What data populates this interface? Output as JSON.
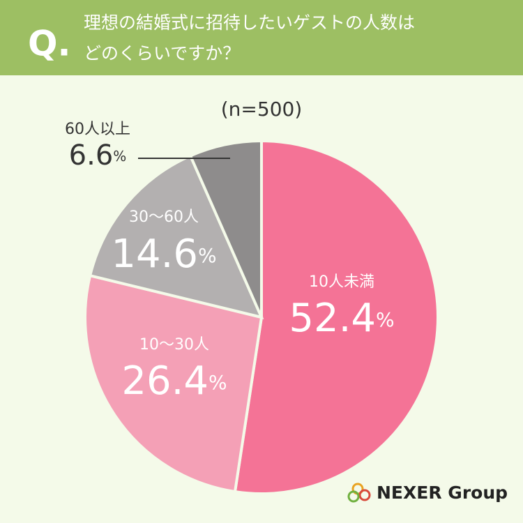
{
  "chart_data": {
    "type": "pie",
    "title_prefix": "Q.",
    "title_lines": [
      "理想の結婚式に招待したいゲストの人数は",
      "どのくらいですか？"
    ],
    "subtitle": "(n=500)",
    "categories": [
      "10人未満",
      "10〜30人",
      "30〜60人",
      "60人以上"
    ],
    "values": [
      52.4,
      26.4,
      14.6,
      6.6
    ],
    "value_suffix": "%",
    "colors": [
      "#f47396",
      "#f4a0b6",
      "#b3b0b0",
      "#8e8c8c"
    ],
    "logo": "NEXER Group"
  }
}
